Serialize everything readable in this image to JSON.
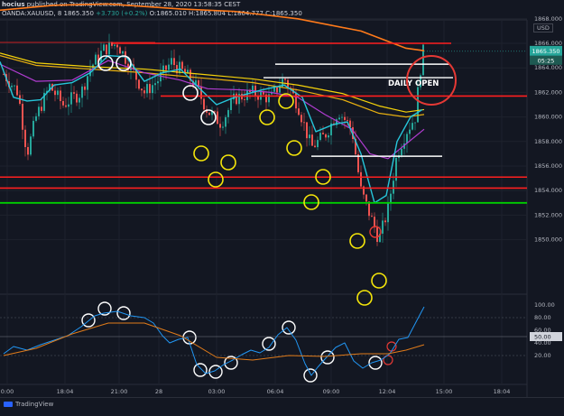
{
  "header": {
    "line1_user": "hocius",
    "line1_rest": " published on TradingView.com, September 28, 2020 13:58:35 CEST",
    "symbol": "OANDA:XAUUSD, 8",
    "price": "1865.350",
    "change": "+3.730 (+0.2%)",
    "ohlc": "O:1865.010  H:1865.804  L:1864.777  C:1865.350"
  },
  "currency": "USD",
  "price_axis": [
    "1868.000",
    "1866.000",
    "1864.000",
    "1862.000",
    "1860.000",
    "1858.000",
    "1856.000",
    "1854.000",
    "1852.000",
    "1850.000"
  ],
  "current_price": "1865.350",
  "countdown": "05:25",
  "annotation": "DAILY OPEN",
  "osc_axis": [
    "100.00",
    "80.00",
    "60.00",
    "40.00",
    "20.00"
  ],
  "osc_value": "50.00",
  "time_axis": [
    "0:00",
    "18:04",
    "21:00",
    "28",
    "03:00",
    "06:04",
    "09:00",
    "12:04",
    "15:00",
    "18:04"
  ],
  "footer": {
    "brand": "TradingView"
  },
  "colors": {
    "background": "#131722",
    "bull": "#26a69a",
    "bear": "#ef5350",
    "resistance": "#ff1f1f",
    "support": "#00d000",
    "ma_slow": "#ff7a1a",
    "ma_yellow": "#f5d20a",
    "ma_cyan": "#26c6da",
    "ma_purple": "#b03cd0",
    "osc_line": "#2196f3",
    "circle_yellow": "#f5e60a",
    "circle_white": "#ffffff"
  }
}
